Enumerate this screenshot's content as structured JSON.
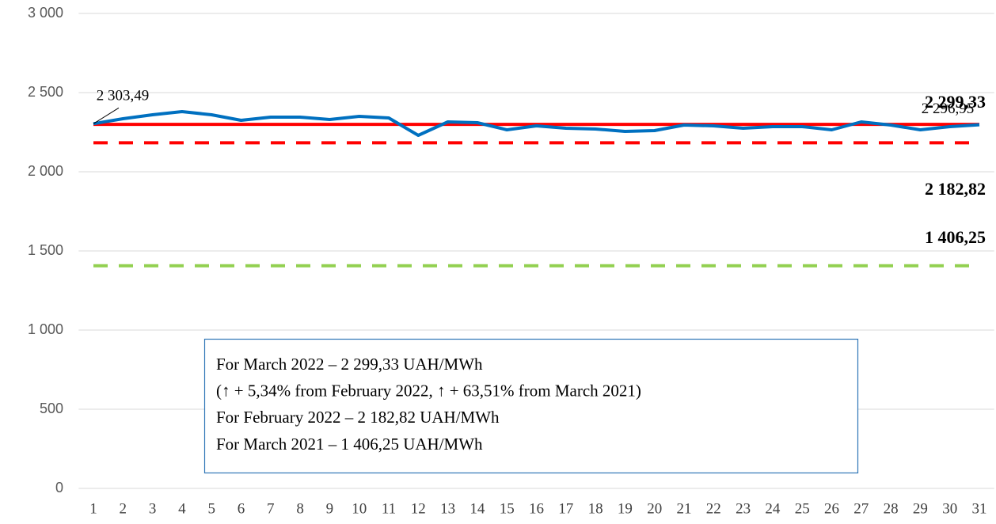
{
  "chart_data": {
    "type": "line",
    "categories": [
      "1",
      "2",
      "3",
      "4",
      "5",
      "6",
      "7",
      "8",
      "9",
      "10",
      "11",
      "12",
      "13",
      "14",
      "15",
      "16",
      "17",
      "18",
      "19",
      "20",
      "21",
      "22",
      "23",
      "24",
      "25",
      "26",
      "27",
      "28",
      "29",
      "30",
      "31"
    ],
    "series": [
      {
        "color": "#0070c0",
        "values": [
          2303.49,
          2335,
          2360,
          2380,
          2360,
          2325,
          2345,
          2345,
          2330,
          2350,
          2340,
          2230,
          2315,
          2310,
          2265,
          2290,
          2275,
          2270,
          2255,
          2260,
          2295,
          2290,
          2275,
          2285,
          2285,
          2265,
          2315,
          2295,
          2265,
          2285,
          2296.95
        ],
        "value_labels": [
          "2 303,49",
          null,
          null,
          null,
          null,
          null,
          null,
          null,
          null,
          null,
          null,
          null,
          null,
          null,
          null,
          null,
          null,
          null,
          null,
          null,
          null,
          null,
          null,
          null,
          null,
          null,
          null,
          null,
          null,
          null,
          "2 296,95"
        ]
      }
    ],
    "reference_lines": [
      {
        "value": 2299.33,
        "label": "2 299,33",
        "color": "#ff0000",
        "dashed": false
      },
      {
        "value": 2182.82,
        "label": "2 182,82",
        "color": "#ff0000",
        "dashed": true
      },
      {
        "value": 1406.25,
        "label": "1 406,25",
        "color": "#92d050",
        "dashed": true
      }
    ],
    "ylim": [
      0,
      3000
    ],
    "yticks": [
      0,
      500,
      {
        "value": 1000,
        "label": "1 000"
      },
      {
        "value": 1500,
        "label": "1 500"
      },
      {
        "value": 2000,
        "label": "2 000"
      },
      {
        "value": 2500,
        "label": "2 500"
      },
      {
        "value": 3000,
        "label": "3 000"
      }
    ],
    "grid": true,
    "annotations": [
      "For March 2022 – 2 299,33 UAH/MWh",
      "(↑ + 5,34% from February 2022, ↑ + 63,51% from  March 2021)",
      "For February 2022 – 2 182,82 UAH/MWh",
      "For March 2021 – 1 406,25 UAH/MWh"
    ]
  }
}
